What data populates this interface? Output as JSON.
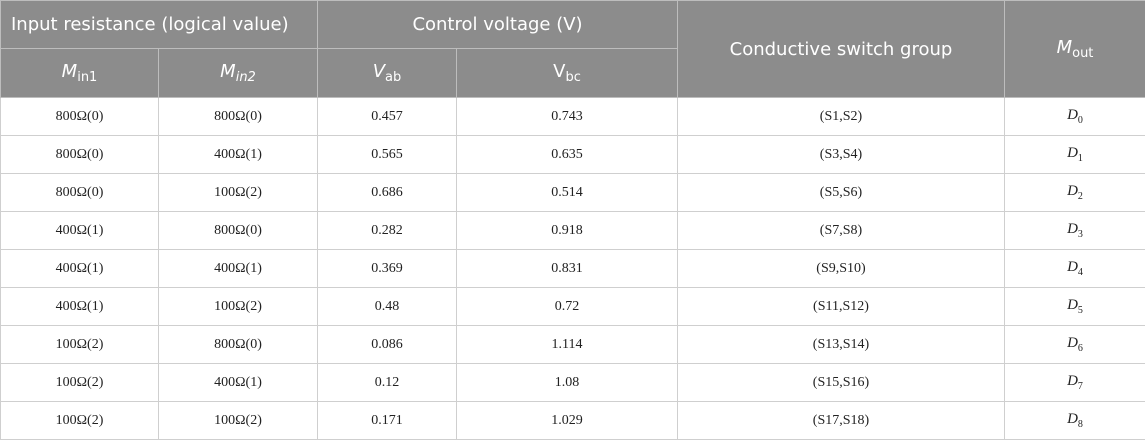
{
  "header": {
    "group_input": "Input resistance (logical value)",
    "group_control": "Control voltage (V)",
    "switch_group": "Conductive switch group",
    "mout_main": "M",
    "mout_sub": "out",
    "min1_main": "M",
    "min1_sub": "in1",
    "min2_main": "M",
    "min2_sub": "in2",
    "vab_main": "V",
    "vab_sub": "ab",
    "vbc_main": "V",
    "vbc_sub": "bc"
  },
  "rows": [
    {
      "min1": "800Ω(0)",
      "min2": "800Ω(0)",
      "vab": "0.457",
      "vbc": "0.743",
      "switches": "(S1,S2)",
      "mout_main": "D",
      "mout_sub": "0"
    },
    {
      "min1": "800Ω(0)",
      "min2": "400Ω(1)",
      "vab": "0.565",
      "vbc": "0.635",
      "switches": "(S3,S4)",
      "mout_main": "D",
      "mout_sub": "1"
    },
    {
      "min1": "800Ω(0)",
      "min2": "100Ω(2)",
      "vab": "0.686",
      "vbc": "0.514",
      "switches": "(S5,S6)",
      "mout_main": "D",
      "mout_sub": "2"
    },
    {
      "min1": "400Ω(1)",
      "min2": "800Ω(0)",
      "vab": "0.282",
      "vbc": "0.918",
      "switches": "(S7,S8)",
      "mout_main": "D",
      "mout_sub": "3"
    },
    {
      "min1": "400Ω(1)",
      "min2": "400Ω(1)",
      "vab": "0.369",
      "vbc": "0.831",
      "switches": "(S9,S10)",
      "mout_main": "D",
      "mout_sub": "4"
    },
    {
      "min1": "400Ω(1)",
      "min2": "100Ω(2)",
      "vab": "0.48",
      "vbc": "0.72",
      "switches": "(S11,S12)",
      "mout_main": "D",
      "mout_sub": "5"
    },
    {
      "min1": "100Ω(2)",
      "min2": "800Ω(0)",
      "vab": "0.086",
      "vbc": "1.114",
      "switches": "(S13,S14)",
      "mout_main": "D",
      "mout_sub": "6"
    },
    {
      "min1": "100Ω(2)",
      "min2": "400Ω(1)",
      "vab": "0.12",
      "vbc": "1.08",
      "switches": "(S15,S16)",
      "mout_main": "D",
      "mout_sub": "7"
    },
    {
      "min1": "100Ω(2)",
      "min2": "100Ω(2)",
      "vab": "0.171",
      "vbc": "1.029",
      "switches": "(S17,S18)",
      "mout_main": "D",
      "mout_sub": "8"
    }
  ],
  "colors": {
    "header_bg": "#8c8c8c",
    "header_text": "#ffffff",
    "border": "#cfcfcf"
  }
}
